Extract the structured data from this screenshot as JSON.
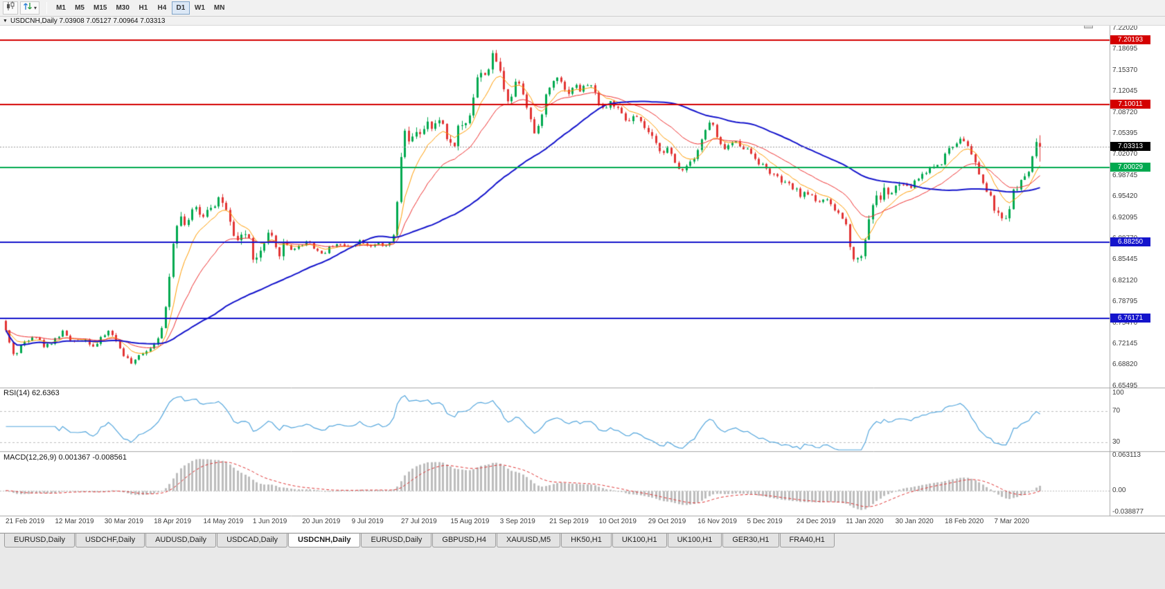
{
  "toolbar": {
    "timeframes": [
      "M1",
      "M5",
      "M15",
      "M30",
      "H1",
      "H4",
      "D1",
      "W1",
      "MN"
    ],
    "active_timeframe": "D1",
    "icons": [
      "candlestick-chart-icon",
      "scroll-arrows-icon",
      "dropdown-caret-icon"
    ]
  },
  "chart": {
    "title_text": "USDCNH,Daily 7.03908 7.05127 7.00964 7.03313",
    "symbol": "USDCNH",
    "period": "Daily",
    "ohlc": {
      "open": 7.03908,
      "high": 7.05127,
      "low": 7.00964,
      "close": 7.03313
    },
    "current_price_label": "7.03313",
    "price_axis_labels": [
      "7.22020",
      "7.18695",
      "7.15370",
      "7.12045",
      "7.08720",
      "7.05395",
      "7.02070",
      "6.98745",
      "6.95420",
      "6.92095",
      "6.88770",
      "6.85445",
      "6.82120",
      "6.78795",
      "6.75470",
      "6.72145",
      "6.68820",
      "6.65495"
    ],
    "levels": [
      {
        "price": 7.20193,
        "label": "7.20193",
        "color": "#d40000",
        "line_width": 2
      },
      {
        "price": 7.10011,
        "label": "7.10011",
        "color": "#d40000",
        "line_width": 2
      },
      {
        "price": 7.00029,
        "label": "7.00029",
        "color": "#00a94f",
        "line_width": 2
      },
      {
        "price": 6.8825,
        "label": "6.88250",
        "color": "#1414cc",
        "line_width": 2
      },
      {
        "price": 6.76171,
        "label": "6.76171",
        "color": "#1414cc",
        "line_width": 2
      }
    ],
    "date_axis_labels": [
      "21 Feb 2019",
      "12 Mar 2019",
      "30 Mar 2019",
      "18 Apr 2019",
      "14 May 2019",
      "1 Jun 2019",
      "20 Jun 2019",
      "9 Jul 2019",
      "27 Jul 2019",
      "15 Aug 2019",
      "3 Sep 2019",
      "21 Sep 2019",
      "10 Oct 2019",
      "29 Oct 2019",
      "16 Nov 2019",
      "5 Dec 2019",
      "24 Dec 2019",
      "11 Jan 2020",
      "30 Jan 2020",
      "18 Feb 2020",
      "7 Mar 2020"
    ],
    "indicators": {
      "rsi": {
        "label": "RSI(14) 62.6363",
        "period": 14,
        "value": 62.6363,
        "axis_labels": [
          "100",
          "70",
          "30"
        ],
        "axis_values": [
          100,
          70,
          30
        ],
        "guide_levels": [
          70,
          30
        ],
        "color": "#53a6dd"
      },
      "macd": {
        "label": "MACD(12,26,9) 0.001367 -0.008561",
        "fast": 12,
        "slow": 26,
        "signal": 9,
        "main_value": 0.001367,
        "signal_value": -0.008561,
        "axis_labels": [
          "0.063113",
          "0.00",
          "-0.038877"
        ],
        "axis_max": 0.063113,
        "axis_min": -0.038877,
        "histogram_color": "#bdbdbd",
        "signal_color": "#e03232"
      }
    },
    "colors": {
      "bull": "#00a94f",
      "bear": "#e23434",
      "background": "#ffffff",
      "axis_text": "#3c3c3c",
      "separator": "#a8a8a8",
      "current_price_line": "#999999",
      "current_price_box": "#000000"
    },
    "moving_averages": [
      {
        "period": 8,
        "type": "ema",
        "color": "#ff9c00",
        "width": 1
      },
      {
        "period": 21,
        "type": "ema",
        "color": "#f03030",
        "width": 1
      },
      {
        "period": 55,
        "type": "sma",
        "color": "#1414cc",
        "width": 2
      }
    ],
    "chart_data": {
      "type": "candlestick",
      "symbol": "USDCNH",
      "timeframe": "D1",
      "candle_count": 273,
      "first_date": "21 Feb 2019",
      "last_date": "7 Mar 2020",
      "price_axis_range": [
        6.65495,
        7.2202
      ],
      "horizontal_level_prices": [
        7.20193,
        7.10011,
        7.00029,
        6.8825,
        6.76171
      ],
      "last_candle": {
        "open": 7.03908,
        "high": 7.05127,
        "low": 7.00964,
        "close": 7.03313
      },
      "seed": 42,
      "price_path_anchors": [
        [
          0,
          6.758
        ],
        [
          1,
          6.732
        ],
        [
          3,
          6.701
        ],
        [
          5,
          6.722
        ],
        [
          8,
          6.737
        ],
        [
          11,
          6.716
        ],
        [
          13,
          6.727
        ],
        [
          16,
          6.742
        ],
        [
          18,
          6.722
        ],
        [
          21,
          6.731
        ],
        [
          24,
          6.717
        ],
        [
          26,
          6.732
        ],
        [
          28,
          6.744
        ],
        [
          30,
          6.721
        ],
        [
          32,
          6.701
        ],
        [
          34,
          6.688
        ],
        [
          36,
          6.706
        ],
        [
          39,
          6.717
        ],
        [
          41,
          6.738
        ],
        [
          42,
          6.748
        ],
        [
          43,
          6.8
        ],
        [
          44,
          6.858
        ],
        [
          45,
          6.9
        ],
        [
          46,
          6.926
        ],
        [
          48,
          6.912
        ],
        [
          50,
          6.936
        ],
        [
          52,
          6.921
        ],
        [
          54,
          6.94
        ],
        [
          56,
          6.946
        ],
        [
          57,
          6.956
        ],
        [
          58,
          6.94
        ],
        [
          60,
          6.901
        ],
        [
          61,
          6.876
        ],
        [
          63,
          6.901
        ],
        [
          65,
          6.881
        ],
        [
          66,
          6.846
        ],
        [
          68,
          6.872
        ],
        [
          70,
          6.896
        ],
        [
          72,
          6.862
        ],
        [
          74,
          6.881
        ],
        [
          76,
          6.872
        ],
        [
          78,
          6.876
        ],
        [
          80,
          6.886
        ],
        [
          82,
          6.871
        ],
        [
          84,
          6.863
        ],
        [
          86,
          6.876
        ],
        [
          88,
          6.881
        ],
        [
          90,
          6.874
        ],
        [
          92,
          6.879
        ],
        [
          94,
          6.886
        ],
        [
          96,
          6.876
        ],
        [
          98,
          6.881
        ],
        [
          100,
          6.873
        ],
        [
          102,
          6.883
        ],
        [
          103,
          6.896
        ],
        [
          104,
          6.978
        ],
        [
          105,
          7.046
        ],
        [
          106,
          7.056
        ],
        [
          107,
          7.031
        ],
        [
          108,
          7.051
        ],
        [
          109,
          7.066
        ],
        [
          110,
          7.051
        ],
        [
          112,
          7.071
        ],
        [
          113,
          7.056
        ],
        [
          115,
          7.081
        ],
        [
          116,
          7.061
        ],
        [
          117,
          7.046
        ],
        [
          118,
          7.026
        ],
        [
          119,
          7.051
        ],
        [
          120,
          7.071
        ],
        [
          121,
          7.061
        ],
        [
          122,
          7.081
        ],
        [
          123,
          7.091
        ],
        [
          124,
          7.131
        ],
        [
          125,
          7.151
        ],
        [
          126,
          7.141
        ],
        [
          127,
          7.161
        ],
        [
          128,
          7.156
        ],
        [
          129,
          7.184
        ],
        [
          130,
          7.161
        ],
        [
          131,
          7.141
        ],
        [
          132,
          7.121
        ],
        [
          133,
          7.101
        ],
        [
          134,
          7.121
        ],
        [
          135,
          7.146
        ],
        [
          136,
          7.131
        ],
        [
          137,
          7.111
        ],
        [
          138,
          7.091
        ],
        [
          139,
          7.066
        ],
        [
          140,
          7.046
        ],
        [
          141,
          7.071
        ],
        [
          142,
          7.101
        ],
        [
          143,
          7.121
        ],
        [
          145,
          7.141
        ],
        [
          146,
          7.151
        ],
        [
          147,
          7.131
        ],
        [
          148,
          7.116
        ],
        [
          150,
          7.131
        ],
        [
          152,
          7.121
        ],
        [
          154,
          7.136
        ],
        [
          156,
          7.111
        ],
        [
          158,
          7.091
        ],
        [
          160,
          7.106
        ],
        [
          162,
          7.086
        ],
        [
          164,
          7.071
        ],
        [
          166,
          7.081
        ],
        [
          168,
          7.066
        ],
        [
          169,
          7.061
        ],
        [
          171,
          7.041
        ],
        [
          173,
          7.026
        ],
        [
          175,
          7.031
        ],
        [
          176,
          7.011
        ],
        [
          178,
          6.996
        ],
        [
          180,
          7.006
        ],
        [
          182,
          7.021
        ],
        [
          184,
          7.051
        ],
        [
          186,
          7.076
        ],
        [
          187,
          7.061
        ],
        [
          188,
          7.036
        ],
        [
          190,
          7.031
        ],
        [
          192,
          7.041
        ],
        [
          194,
          7.036
        ],
        [
          195,
          7.031
        ],
        [
          197,
          7.021
        ],
        [
          199,
          7.006
        ],
        [
          201,
          6.996
        ],
        [
          203,
          6.986
        ],
        [
          205,
          6.976
        ],
        [
          207,
          6.971
        ],
        [
          208,
          6.966
        ],
        [
          210,
          6.956
        ],
        [
          212,
          6.961
        ],
        [
          214,
          6.946
        ],
        [
          216,
          6.951
        ],
        [
          218,
          6.936
        ],
        [
          220,
          6.926
        ],
        [
          221,
          6.916
        ],
        [
          222,
          6.901
        ],
        [
          223,
          6.871
        ],
        [
          224,
          6.851
        ],
        [
          225,
          6.856
        ],
        [
          226,
          6.871
        ],
        [
          227,
          6.901
        ],
        [
          228,
          6.931
        ],
        [
          229,
          6.956
        ],
        [
          230,
          6.946
        ],
        [
          231,
          6.961
        ],
        [
          232,
          6.966
        ],
        [
          233,
          6.956
        ],
        [
          234,
          6.961
        ],
        [
          236,
          6.976
        ],
        [
          238,
          6.966
        ],
        [
          240,
          6.981
        ],
        [
          242,
          6.991
        ],
        [
          244,
          7.001
        ],
        [
          246,
          7.006
        ],
        [
          247,
          7.011
        ],
        [
          248,
          7.026
        ],
        [
          249,
          7.036
        ],
        [
          250,
          7.031
        ],
        [
          251,
          7.046
        ],
        [
          252,
          7.051
        ],
        [
          253,
          7.041
        ],
        [
          254,
          7.026
        ],
        [
          255,
          7.016
        ],
        [
          256,
          6.996
        ],
        [
          257,
          6.986
        ],
        [
          258,
          6.971
        ],
        [
          259,
          6.956
        ],
        [
          260,
          6.946
        ],
        [
          261,
          6.931
        ],
        [
          262,
          6.921
        ],
        [
          263,
          6.911
        ],
        [
          264,
          6.926
        ],
        [
          265,
          6.951
        ],
        [
          266,
          6.966
        ],
        [
          267,
          6.976
        ],
        [
          268,
          6.981
        ],
        [
          269,
          6.986
        ],
        [
          270,
          6.991
        ],
        [
          271,
          7.039
        ],
        [
          272,
          7.033
        ]
      ],
      "volatility_segments": [
        [
          0,
          42,
          0.0035
        ],
        [
          43,
          75,
          0.008
        ],
        [
          76,
          103,
          0.0028
        ],
        [
          104,
          131,
          0.0085
        ],
        [
          132,
          170,
          0.0055
        ],
        [
          171,
          220,
          0.0042
        ],
        [
          221,
          235,
          0.0085
        ],
        [
          236,
          254,
          0.0042
        ],
        [
          255,
          272,
          0.0065
        ]
      ]
    }
  },
  "tabs": [
    {
      "label": "EURUSD,Daily",
      "active": false
    },
    {
      "label": "USDCHF,Daily",
      "active": false
    },
    {
      "label": "AUDUSD,Daily",
      "active": false
    },
    {
      "label": "USDCAD,Daily",
      "active": false
    },
    {
      "label": "USDCNH,Daily",
      "active": true
    },
    {
      "label": "EURUSD,Daily",
      "active": false
    },
    {
      "label": "GBPUSD,H4",
      "active": false
    },
    {
      "label": "XAUUSD,M5",
      "active": false
    },
    {
      "label": "HK50,H1",
      "active": false
    },
    {
      "label": "UK100,H1",
      "active": false
    },
    {
      "label": "UK100,H1",
      "active": false
    },
    {
      "label": "GER30,H1",
      "active": false
    },
    {
      "label": "FRA40,H1",
      "active": false
    }
  ]
}
